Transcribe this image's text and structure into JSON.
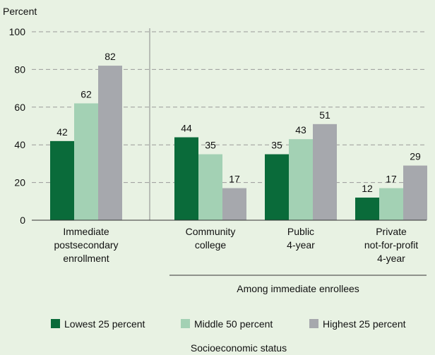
{
  "chart_data": {
    "type": "bar",
    "ylabel": "Percent",
    "ylim": [
      0,
      100
    ],
    "yticks": [
      "0",
      "20",
      "40",
      "60",
      "80",
      "100"
    ],
    "grid": true,
    "categories": [
      [
        "Immediate",
        "postsecondary",
        "enrollment"
      ],
      [
        "Community",
        "college"
      ],
      [
        "Public",
        "4-year"
      ],
      [
        "Private",
        "not-for-profit",
        "4-year"
      ]
    ],
    "group_label": "Among immediate enrollees",
    "series": [
      {
        "name": "Lowest 25 percent",
        "values": [
          42,
          44,
          35,
          12
        ],
        "color": "#0a6b3a"
      },
      {
        "name": "Middle 50 percent",
        "values": [
          62,
          35,
          43,
          17
        ],
        "color": "#a3d1b4"
      },
      {
        "name": "Highest 25 percent",
        "values": [
          82,
          17,
          51,
          29
        ],
        "color": "#a6a8ad"
      }
    ],
    "legend_title": "Socioeconomic status",
    "legend_placement": "bottom"
  }
}
